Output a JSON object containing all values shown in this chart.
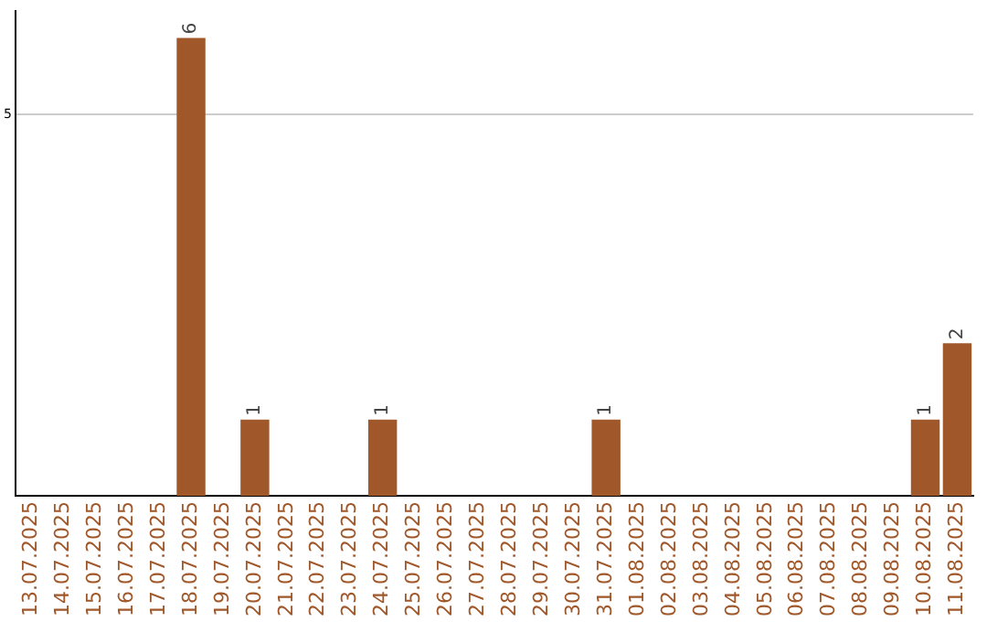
{
  "chart_data": {
    "type": "bar",
    "categories": [
      "13.07.2025",
      "14.07.2025",
      "15.07.2025",
      "16.07.2025",
      "17.07.2025",
      "18.07.2025",
      "19.07.2025",
      "20.07.2025",
      "21.07.2025",
      "22.07.2025",
      "23.07.2025",
      "24.07.2025",
      "25.07.2025",
      "26.07.2025",
      "27.07.2025",
      "28.07.2025",
      "29.07.2025",
      "30.07.2025",
      "31.07.2025",
      "01.08.2025",
      "02.08.2025",
      "03.08.2025",
      "04.08.2025",
      "05.08.2025",
      "06.08.2025",
      "07.08.2025",
      "08.08.2025",
      "09.08.2025",
      "10.08.2025",
      "11.08.2025"
    ],
    "values": [
      0,
      0,
      0,
      0,
      0,
      6,
      0,
      1,
      0,
      0,
      0,
      1,
      0,
      0,
      0,
      0,
      0,
      0,
      1,
      0,
      0,
      0,
      0,
      0,
      0,
      0,
      0,
      0,
      1,
      2
    ],
    "color": "#a0582a",
    "value_labels": [
      null,
      null,
      null,
      null,
      null,
      "6",
      null,
      "1",
      null,
      null,
      null,
      "1",
      null,
      null,
      null,
      null,
      null,
      null,
      "1",
      null,
      null,
      null,
      null,
      null,
      null,
      null,
      null,
      null,
      "1",
      "2"
    ],
    "ylim": [
      0,
      6.35
    ],
    "yticks": [
      5
    ],
    "grid": "y"
  }
}
